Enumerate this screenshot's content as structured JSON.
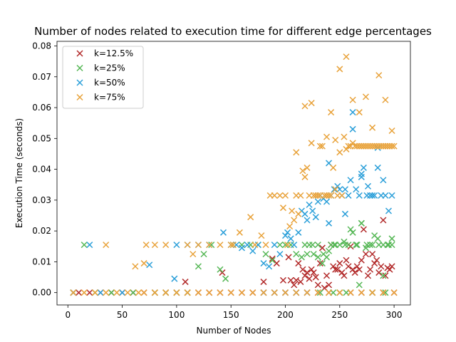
{
  "chart_data": {
    "type": "scatter",
    "title": "Number of nodes related to execution time for different edge percentages",
    "xlabel": "Number of Nodes",
    "ylabel": "Execution Time (seconds)",
    "xlim": [
      -10,
      315
    ],
    "ylim": [
      -0.004,
      0.0815
    ],
    "xticks": [
      0,
      50,
      100,
      150,
      200,
      250,
      300
    ],
    "yticks": [
      0.0,
      0.01,
      0.02,
      0.03,
      0.04,
      0.05,
      0.06,
      0.07,
      0.08
    ],
    "xtick_labels": [
      "0",
      "50",
      "100",
      "150",
      "200",
      "250",
      "300"
    ],
    "ytick_labels": [
      "0.00",
      "0.01",
      "0.02",
      "0.03",
      "0.04",
      "0.05",
      "0.06",
      "0.07",
      "0.08"
    ],
    "grid": false,
    "legend_position": "top-left",
    "marker": "x",
    "series": [
      {
        "name": "k=12.5%",
        "color": "#b22a2a",
        "x": [
          5,
          10,
          20,
          30,
          40,
          50,
          60,
          70,
          80,
          90,
          100,
          110,
          120,
          130,
          140,
          150,
          160,
          170,
          180,
          190,
          200,
          210,
          220,
          230,
          240,
          250,
          260,
          270,
          280,
          290,
          300,
          108,
          142,
          180,
          188,
          192,
          198,
          203,
          205,
          208,
          210,
          212,
          214,
          216,
          218,
          220,
          222,
          224,
          226,
          228,
          230,
          232,
          234,
          236,
          238,
          240,
          242,
          244,
          246,
          248,
          250,
          252,
          254,
          256,
          258,
          260,
          262,
          264,
          266,
          268,
          270,
          272,
          274,
          276,
          278,
          280,
          282,
          284,
          286,
          288,
          290,
          292,
          294,
          296,
          298
        ],
        "y": [
          0,
          0,
          0,
          0,
          0,
          0,
          0,
          0,
          0,
          0,
          0,
          0,
          0,
          0,
          0,
          0,
          0,
          0,
          0,
          0,
          0,
          0,
          0,
          0,
          0,
          0,
          0,
          0,
          0,
          0,
          0,
          0.0035,
          0.0065,
          0.0035,
          0.011,
          0.0095,
          0.004,
          0.0115,
          0.004,
          0.0025,
          0.004,
          0.0095,
          0.0035,
          0.0075,
          0.0055,
          0.0065,
          0.0045,
          0.0075,
          0.0065,
          0.005,
          0.0025,
          0.0095,
          0.0145,
          0.0015,
          0.0055,
          0.0025,
          0.0155,
          0.0085,
          0.0075,
          0.0075,
          0.0095,
          0.0065,
          0.0055,
          0.0105,
          0.0085,
          0.015,
          0.0075,
          0.0065,
          0.0085,
          0.0075,
          0.0105,
          0.0205,
          0.0125,
          0.0055,
          0.0075,
          0.0125,
          0.0095,
          0.0105,
          0.0065,
          0.0085,
          0.0235,
          0.0055,
          0.008,
          0.0075,
          0.0085
        ]
      },
      {
        "name": "k=25%",
        "color": "#55b755",
        "x": [
          5,
          15,
          25,
          40,
          60,
          80,
          90,
          100,
          110,
          120,
          125,
          132,
          140,
          145,
          152,
          160,
          168,
          175,
          182,
          188,
          195,
          200,
          205,
          210,
          215,
          220,
          225,
          230,
          235,
          240,
          245,
          250,
          255,
          260,
          265,
          270,
          275,
          280,
          285,
          290,
          295,
          298,
          218,
          222,
          226,
          230,
          234,
          238,
          242,
          246,
          250,
          254,
          258,
          262,
          266,
          270,
          274,
          278,
          282,
          286,
          290,
          294,
          298,
          232,
          244,
          256,
          268,
          280,
          292
        ],
        "y": [
          0,
          0.0155,
          0,
          0,
          0,
          0,
          0,
          0,
          0,
          0.0085,
          0.0125,
          0.0155,
          0.0075,
          0.0045,
          0.0155,
          0.0155,
          0.0155,
          0.0155,
          0.0125,
          0.0105,
          0.0155,
          0.0155,
          0.0155,
          0.0125,
          0.0115,
          0.0125,
          0.0155,
          0.0115,
          0.0125,
          0.0135,
          0.0155,
          0.0155,
          0.0155,
          0.0205,
          0.0155,
          0.0225,
          0.0155,
          0.0155,
          0.0175,
          0.0155,
          0.0155,
          0.0155,
          0.0155,
          0.0155,
          0.0125,
          0.0155,
          0.0095,
          0.0115,
          0.0155,
          0.0155,
          0,
          0.0165,
          0.0155,
          0.0195,
          0.0155,
          0.0225,
          0.0145,
          0.0155,
          0.0185,
          0.0155,
          0.0055,
          0.0155,
          0.0175,
          0,
          0,
          0,
          0.0025,
          0,
          0
        ]
      },
      {
        "name": "k=50%",
        "color": "#2b9fd9",
        "x": [
          5,
          20,
          30,
          50,
          75,
          98,
          100,
          110,
          120,
          130,
          143,
          150,
          155,
          160,
          165,
          170,
          175,
          180,
          185,
          190,
          195,
          200,
          202,
          205,
          208,
          212,
          215,
          218,
          220,
          222,
          225,
          228,
          230,
          232,
          235,
          238,
          240,
          242,
          245,
          248,
          250,
          252,
          255,
          258,
          260,
          262,
          265,
          268,
          270,
          272,
          275,
          278,
          280,
          282,
          285,
          288,
          290,
          292,
          295,
          298,
          180,
          190,
          200,
          210,
          220,
          240,
          255,
          262,
          270,
          276,
          285
        ],
        "y": [
          0,
          0.0155,
          0,
          0,
          0.009,
          0.0045,
          0.0155,
          0.0155,
          0.0155,
          0.0155,
          0.0195,
          0.0155,
          0.0155,
          0.0145,
          0.0155,
          0.0135,
          0.0155,
          0.0095,
          0.0085,
          0.0155,
          0.0125,
          0.0185,
          0.0195,
          0.0175,
          0.0155,
          0.0195,
          0.0265,
          0.0255,
          0.0235,
          0.0285,
          0.0265,
          0.0245,
          0.0295,
          0.0315,
          0.0305,
          0.0295,
          0.0225,
          0.0315,
          0.0335,
          0.0345,
          0.0335,
          0.0315,
          0.0255,
          0.0315,
          0.0365,
          0.0585,
          0.0335,
          0.0315,
          0.0385,
          0.0405,
          0.0315,
          0.0315,
          0.0315,
          0.0315,
          0.0405,
          0.0315,
          0.0365,
          0.0315,
          0.0265,
          0.0315,
          0,
          0,
          0,
          0,
          0,
          0.042,
          0.0335,
          0.053,
          0.0375,
          0.0345,
          0.047
        ]
      },
      {
        "name": "k=75%",
        "color": "#e8a23a",
        "x": [
          5,
          15,
          25,
          35,
          45,
          55,
          65,
          70,
          80,
          90,
          100,
          110,
          120,
          130,
          140,
          150,
          160,
          170,
          180,
          190,
          200,
          210,
          220,
          230,
          240,
          250,
          260,
          270,
          280,
          290,
          300,
          35,
          62,
          70,
          72,
          80,
          90,
          110,
          115,
          120,
          130,
          140,
          150,
          152,
          158,
          168,
          172,
          178,
          182,
          186,
          190,
          195,
          198,
          200,
          202,
          204,
          206,
          208,
          210,
          212,
          214,
          216,
          218,
          220,
          222,
          224,
          226,
          228,
          230,
          232,
          234,
          236,
          238,
          240,
          242,
          244,
          246,
          248,
          250,
          252,
          254,
          256,
          258,
          260,
          262,
          264,
          266,
          268,
          270,
          272,
          274,
          276,
          278,
          280,
          282,
          284,
          286,
          288,
          290,
          292,
          294,
          296,
          298,
          300,
          210,
          218,
          224,
          232,
          238,
          242,
          246,
          250,
          256,
          262,
          268,
          274,
          280,
          286,
          292,
          298
        ],
        "y": [
          0,
          0,
          0,
          0,
          0,
          0,
          0,
          0,
          0,
          0,
          0,
          0,
          0,
          0,
          0,
          0,
          0,
          0,
          0,
          0,
          0,
          0,
          0,
          0,
          0,
          0,
          0,
          0,
          0,
          0,
          0,
          0.0155,
          0.0085,
          0.0095,
          0.0155,
          0.0155,
          0.0155,
          0.0155,
          0.0125,
          0.0155,
          0.0155,
          0.0155,
          0.0155,
          0.0155,
          0.0195,
          0.0245,
          0.0155,
          0.0185,
          0.0155,
          0.0315,
          0.0315,
          0.0315,
          0.0275,
          0.0315,
          0.0155,
          0.0215,
          0.0265,
          0.0235,
          0.0315,
          0.0255,
          0.0315,
          0.0395,
          0.0375,
          0.0405,
          0.0315,
          0.0485,
          0.0315,
          0.0315,
          0.0315,
          0.0315,
          0.0475,
          0.0315,
          0.0315,
          0.0315,
          0.0585,
          0.0405,
          0.0495,
          0.0315,
          0.0455,
          0.0315,
          0.0505,
          0.0465,
          0.0475,
          0.0475,
          0.0485,
          0.0475,
          0.0475,
          0.0475,
          0.0475,
          0.0475,
          0.0475,
          0.0475,
          0.0475,
          0.0475,
          0.0475,
          0.0475,
          0.0475,
          0.0475,
          0.0475,
          0.0475,
          0.0475,
          0.0475,
          0.0475,
          0.0475,
          0.0455,
          0.0605,
          0.0615,
          0.0475,
          0.0505,
          0.0315,
          0.0335,
          0.0725,
          0.0765,
          0.0625,
          0.0585,
          0.0635,
          0.0535,
          0.0705,
          0.0625,
          0.0525
        ]
      }
    ]
  }
}
